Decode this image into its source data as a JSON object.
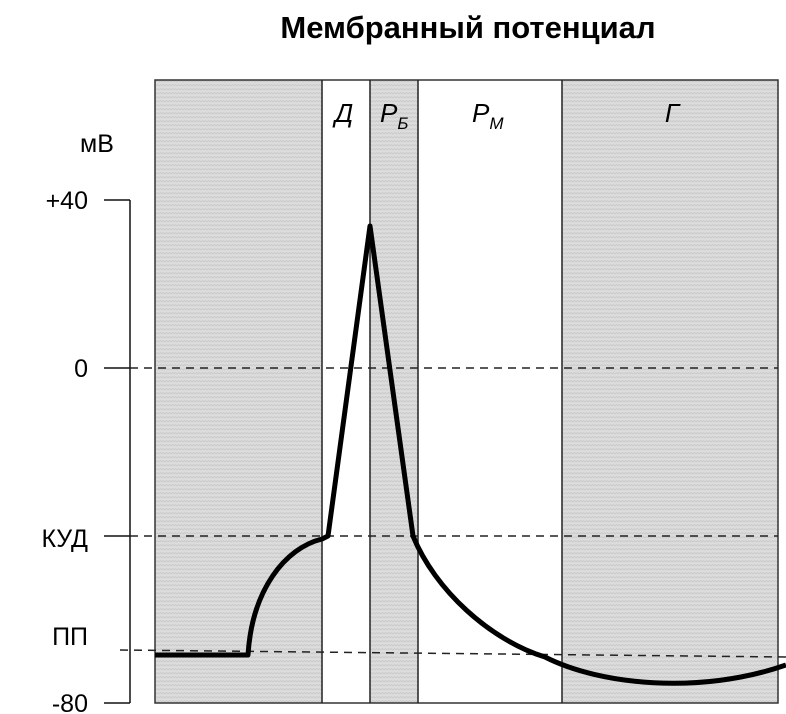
{
  "title": "Мембранный потенциал",
  "y_unit": "мВ",
  "y_labels": {
    "top": "+40",
    "zero": "0",
    "threshold": "КУД",
    "rest": "ПП",
    "bottom": "-80"
  },
  "phases": [
    {
      "main": "Д",
      "sub": ""
    },
    {
      "main": "Р",
      "sub": "Б"
    },
    {
      "main": "Р",
      "sub": "М"
    },
    {
      "main": "Г",
      "sub": ""
    }
  ],
  "colors": {
    "shade": "#d9d9d9",
    "line": "#000000"
  }
}
